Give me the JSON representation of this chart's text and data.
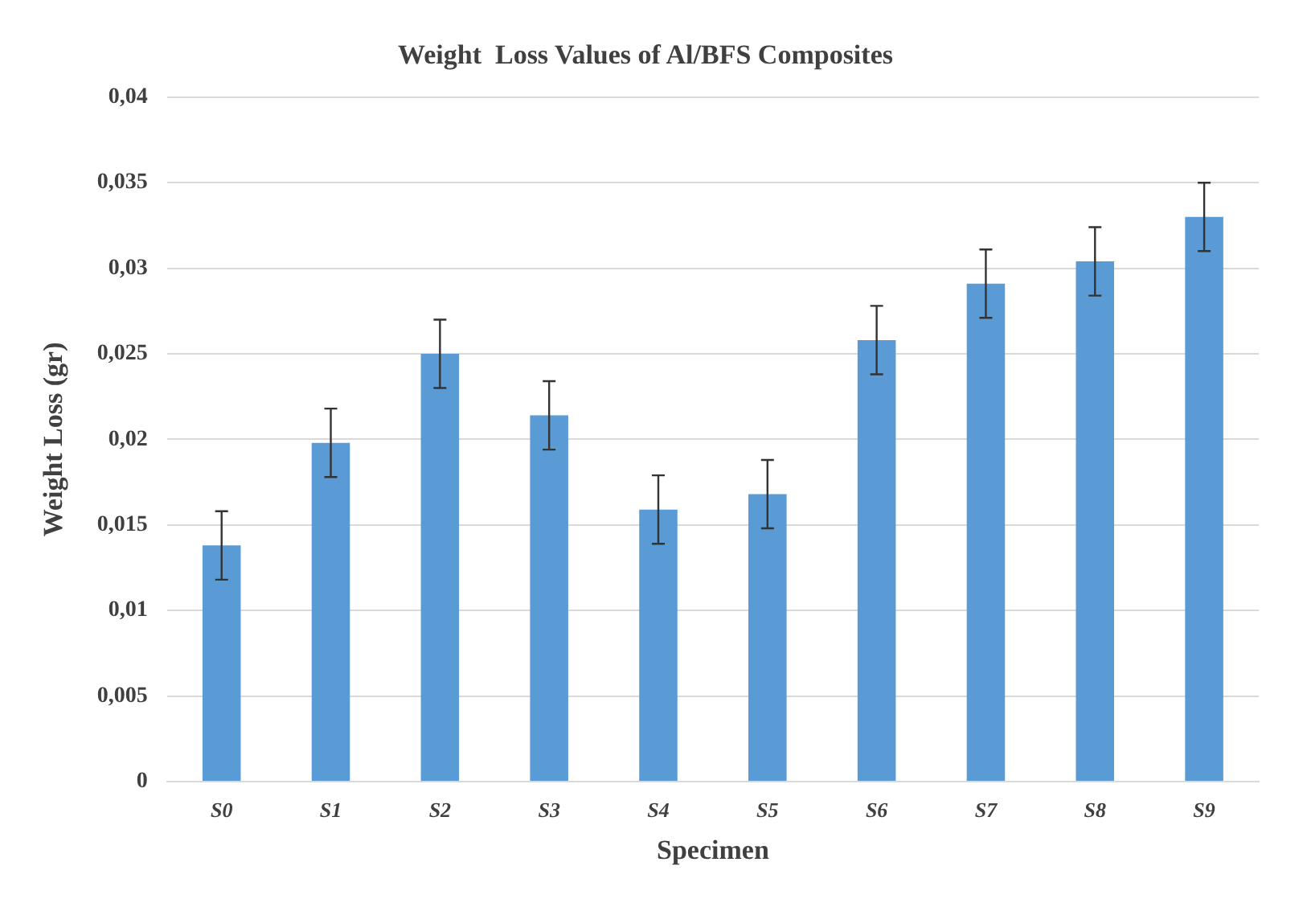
{
  "chart_data": {
    "type": "bar",
    "title": "Weight  Loss Values of Al/BFS Composites",
    "xlabel": "Specimen",
    "ylabel": "Weight Loss (gr)",
    "categories": [
      "S0",
      "S1",
      "S2",
      "S3",
      "S4",
      "S5",
      "S6",
      "S7",
      "S8",
      "S9"
    ],
    "values": [
      0.0138,
      0.0198,
      0.025,
      0.0214,
      0.0159,
      0.0168,
      0.0258,
      0.0291,
      0.0304,
      0.033
    ],
    "errors": [
      0.002,
      0.002,
      0.002,
      0.002,
      0.002,
      0.002,
      0.002,
      0.002,
      0.002,
      0.002
    ],
    "color": "#5b9bd5",
    "ylim": [
      0,
      0.04
    ],
    "yticks": [
      0,
      {
        "value": 0.005,
        "label": "0,005"
      },
      {
        "value": 0.01,
        "label": "0,01"
      },
      {
        "value": 0.015,
        "label": "0,015"
      },
      {
        "value": 0.02,
        "label": "0,02"
      },
      {
        "value": 0.025,
        "label": "0,025"
      },
      {
        "value": 0.03,
        "label": "0,03"
      },
      {
        "value": 0.035,
        "label": "0,035"
      },
      {
        "value": 0.04,
        "label": "0,04"
      }
    ],
    "grid": "y",
    "legend": false
  }
}
